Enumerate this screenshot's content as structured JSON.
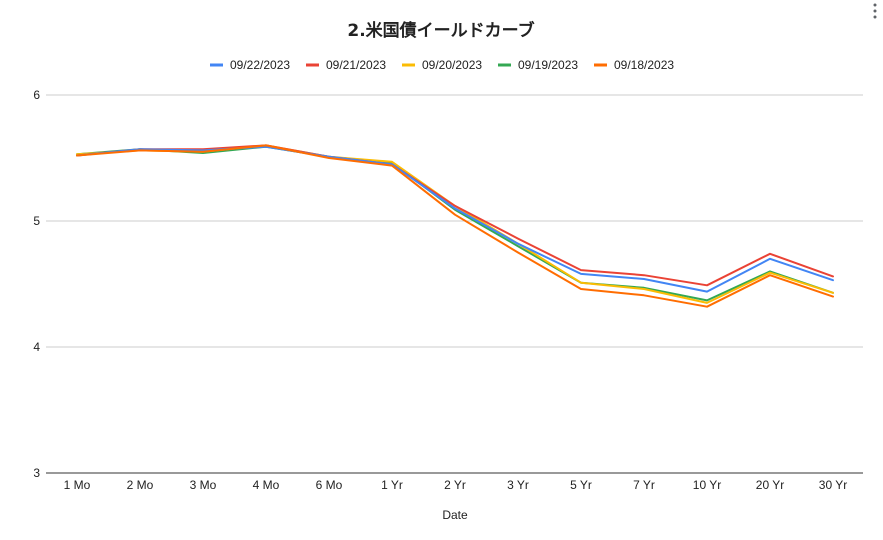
{
  "chart_data": {
    "type": "line",
    "title": "2.米国債イールドカーブ",
    "xlabel": "Date",
    "ylabel": "",
    "ylim": [
      3,
      6
    ],
    "yticks": [
      3,
      4,
      5,
      6
    ],
    "grid": true,
    "legend_position": "top",
    "categories": [
      "1 Mo",
      "2 Mo",
      "3 Mo",
      "4 Mo",
      "6 Mo",
      "1 Yr",
      "2 Yr",
      "3 Yr",
      "5 Yr",
      "7 Yr",
      "10 Yr",
      "20 Yr",
      "30 Yr"
    ],
    "series": [
      {
        "name": "09/22/2023",
        "color": "#4285f4",
        "values": [
          5.52,
          5.57,
          5.56,
          5.59,
          5.51,
          5.45,
          5.1,
          4.82,
          4.58,
          4.54,
          4.44,
          4.7,
          4.53
        ]
      },
      {
        "name": "09/21/2023",
        "color": "#ea4335",
        "values": [
          5.52,
          5.57,
          5.57,
          5.6,
          5.51,
          5.45,
          5.12,
          4.86,
          4.61,
          4.57,
          4.49,
          4.74,
          4.56
        ]
      },
      {
        "name": "09/20/2023",
        "color": "#fbbc04",
        "values": [
          5.53,
          5.56,
          5.55,
          5.6,
          5.51,
          5.47,
          5.12,
          4.82,
          4.51,
          4.46,
          4.35,
          4.59,
          4.43
        ]
      },
      {
        "name": "09/19/2023",
        "color": "#34a853",
        "values": [
          5.53,
          5.57,
          5.54,
          5.59,
          5.51,
          5.46,
          5.09,
          4.8,
          4.51,
          4.47,
          4.37,
          4.6,
          4.43
        ]
      },
      {
        "name": "09/18/2023",
        "color": "#ff6d01",
        "values": [
          5.52,
          5.56,
          5.55,
          5.6,
          5.5,
          5.44,
          5.05,
          4.75,
          4.46,
          4.41,
          4.32,
          4.57,
          4.4
        ]
      }
    ]
  }
}
